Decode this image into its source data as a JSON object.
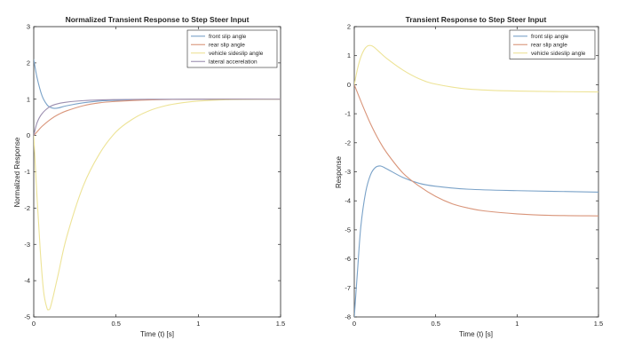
{
  "colors": {
    "blue": "#7aa2c8",
    "orange": "#d9957a",
    "yellow": "#ede396",
    "purple": "#9c8fb0",
    "axis": "#262626",
    "background": "#ffffff"
  },
  "chart_data": [
    {
      "type": "line",
      "title": "Normalized Transient Response to Step Steer Input",
      "xlabel": "Time (t) [s]",
      "ylabel": "Normalized Response",
      "xlim": [
        0,
        1.5
      ],
      "ylim": [
        -5,
        3
      ],
      "xticks": [
        0,
        0.5,
        1,
        1.5
      ],
      "xtick_labels": [
        "0",
        "0.5",
        "1",
        "1.5"
      ],
      "yticks": [
        3,
        2,
        1,
        0,
        -1,
        -2,
        -3,
        -4,
        -5
      ],
      "ytick_labels": [
        "3",
        "2",
        "1",
        "0",
        "-1",
        "-2",
        "-3",
        "-4",
        "-5"
      ],
      "grid": false,
      "legend_position": "top-right",
      "series": [
        {
          "name": "front slip angle",
          "color": "#7aa2c8",
          "x": [
            0,
            0.02,
            0.05,
            0.08,
            0.1,
            0.12,
            0.15,
            0.2,
            0.3,
            0.4,
            0.5,
            0.7,
            1.0,
            1.5
          ],
          "y": [
            2.1,
            1.6,
            1.1,
            0.85,
            0.78,
            0.75,
            0.76,
            0.82,
            0.9,
            0.95,
            0.97,
            0.99,
            1.0,
            1.0
          ]
        },
        {
          "name": "rear slip angle",
          "color": "#d9957a",
          "x": [
            0,
            0.02,
            0.05,
            0.1,
            0.15,
            0.2,
            0.3,
            0.4,
            0.5,
            0.7,
            1.0,
            1.5
          ],
          "y": [
            0,
            0.1,
            0.25,
            0.44,
            0.58,
            0.68,
            0.82,
            0.9,
            0.94,
            0.98,
            1.0,
            1.0
          ]
        },
        {
          "name": "vehicle sideslip angle",
          "color": "#ede396",
          "x": [
            0,
            0.02,
            0.04,
            0.06,
            0.08,
            0.09,
            0.1,
            0.12,
            0.15,
            0.2,
            0.3,
            0.4,
            0.5,
            0.6,
            0.7,
            0.8,
            0.9,
            1.0,
            1.2,
            1.5
          ],
          "y": [
            0,
            -1.7,
            -3.2,
            -4.3,
            -4.75,
            -4.8,
            -4.75,
            -4.4,
            -3.8,
            -2.8,
            -1.4,
            -0.5,
            0.1,
            0.45,
            0.68,
            0.82,
            0.9,
            0.95,
            0.99,
            1.0
          ]
        },
        {
          "name": "lateral accerelation",
          "color": "#9c8fb0",
          "x": [
            0,
            0.02,
            0.05,
            0.1,
            0.15,
            0.2,
            0.3,
            0.4,
            0.5,
            0.7,
            1.0,
            1.5
          ],
          "y": [
            0,
            0.35,
            0.6,
            0.8,
            0.88,
            0.92,
            0.96,
            0.98,
            0.99,
            1.0,
            1.0,
            1.0
          ]
        }
      ]
    },
    {
      "type": "line",
      "title": "Transient Response to Step Steer Input",
      "xlabel": "Time (t) [s]",
      "ylabel": "Response",
      "xlim": [
        0,
        1.5
      ],
      "ylim": [
        -8,
        2
      ],
      "xticks": [
        0,
        0.5,
        1,
        1.5
      ],
      "xtick_labels": [
        "0",
        "0.5",
        "1",
        "1.5"
      ],
      "yticks": [
        2,
        1,
        0,
        -1,
        -2,
        -3,
        -4,
        -5,
        -6,
        -7,
        -8
      ],
      "ytick_labels": [
        "2",
        "1",
        "0",
        "-1",
        "-2",
        "-3",
        "-4",
        "-5",
        "-6",
        "-7",
        "-8"
      ],
      "grid": false,
      "legend_position": "top-right",
      "series": [
        {
          "name": "front slip angle",
          "color": "#7aa2c8",
          "x": [
            0,
            0.02,
            0.04,
            0.07,
            0.1,
            0.13,
            0.16,
            0.2,
            0.3,
            0.4,
            0.5,
            0.7,
            1.0,
            1.5
          ],
          "y": [
            -8,
            -6.4,
            -4.9,
            -3.7,
            -3.1,
            -2.85,
            -2.8,
            -2.9,
            -3.2,
            -3.4,
            -3.5,
            -3.6,
            -3.65,
            -3.7
          ]
        },
        {
          "name": "rear slip angle",
          "color": "#d9957a",
          "x": [
            0,
            0.05,
            0.1,
            0.15,
            0.2,
            0.3,
            0.4,
            0.5,
            0.6,
            0.7,
            0.8,
            1.0,
            1.2,
            1.5
          ],
          "y": [
            0,
            -0.7,
            -1.35,
            -1.9,
            -2.35,
            -3.05,
            -3.5,
            -3.85,
            -4.1,
            -4.25,
            -4.35,
            -4.45,
            -4.5,
            -4.52
          ]
        },
        {
          "name": "vehicle sideslip angle",
          "color": "#ede396",
          "x": [
            0,
            0.02,
            0.04,
            0.06,
            0.08,
            0.1,
            0.12,
            0.15,
            0.2,
            0.3,
            0.4,
            0.5,
            0.7,
            1.0,
            1.5
          ],
          "y": [
            0,
            0.55,
            0.95,
            1.2,
            1.33,
            1.35,
            1.3,
            1.15,
            0.9,
            0.5,
            0.2,
            0.02,
            -0.15,
            -0.22,
            -0.25
          ]
        }
      ]
    }
  ]
}
